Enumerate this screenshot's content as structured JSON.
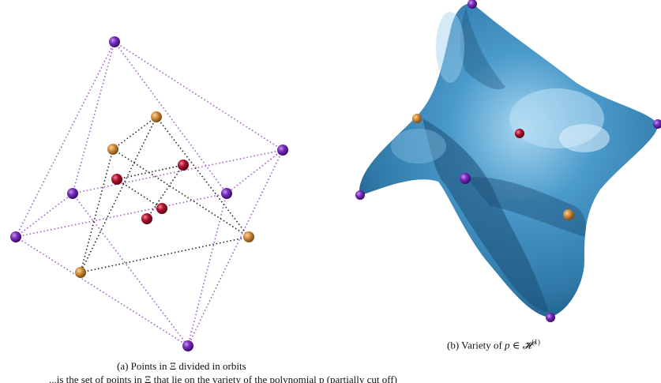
{
  "figure": {
    "panel_a": {
      "caption": "(a) Points in Ξ divided in orbits",
      "point_colors": {
        "vertex": "#6a1fa3",
        "orbit_orange": "#c98a3c",
        "orbit_red": "#b3122e",
        "edge_purple": "#a05ac8",
        "edge_black": "#222222"
      }
    },
    "panel_b": {
      "caption_prefix": "(b) Variety of ",
      "caption_var": "p",
      "caption_rel": " ∈ ",
      "caption_set": "𝓗",
      "caption_sup": "(1)",
      "surface_color": "#3f8fc0",
      "surface_shadow": "#1c4e74"
    },
    "cut_text": "...is the set of points in Ξ that lie on the variety of the polynomial p (partially cut off)"
  }
}
